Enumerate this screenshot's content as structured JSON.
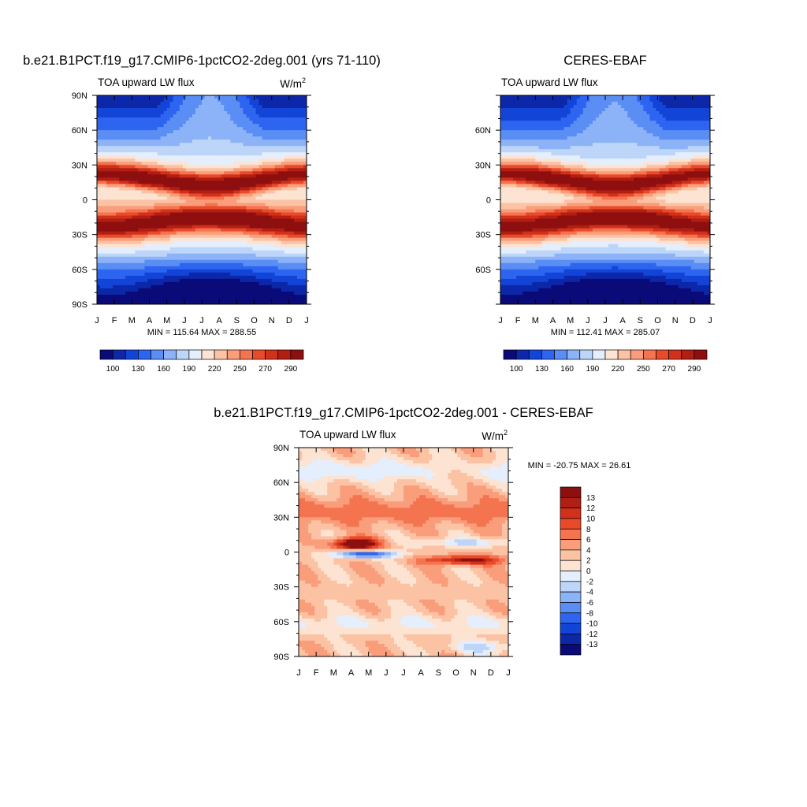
{
  "figure": {
    "units": "W/m",
    "units_exp": "2",
    "month_ticks": [
      "J",
      "F",
      "M",
      "A",
      "M",
      "J",
      "J",
      "A",
      "S",
      "O",
      "N",
      "D",
      "J"
    ]
  },
  "chart_data": [
    {
      "type": "heatmap",
      "title": "b.e21.B1PCT.f19_g17.CMIP6-1pctCO2-2deg.001 (yrs 71-110)",
      "subtitle": "TOA upward LW flux",
      "show_units": true,
      "xlabel": "",
      "ylabel": "",
      "x_tick_labels": [
        "J",
        "F",
        "M",
        "A",
        "M",
        "J",
        "J",
        "A",
        "S",
        "O",
        "N",
        "D",
        "J"
      ],
      "y_tick_labels": [
        "90N",
        "60N",
        "30N",
        "0",
        "30S",
        "60S",
        "90S"
      ],
      "ylim": [
        -90,
        90
      ],
      "stats": "MIN = 115.64 MAX = 288.55",
      "min": 115.64,
      "max": 288.55,
      "colorbar": {
        "orientation": "horizontal",
        "labels": [
          "100",
          "130",
          "160",
          "190",
          "220",
          "250",
          "270",
          "290"
        ],
        "colors": [
          "#0a0a78",
          "#0c27a8",
          "#1344d8",
          "#2d65f0",
          "#5a8ef5",
          "#8cb2f7",
          "#bed5fa",
          "#e4eefc",
          "#fde3d2",
          "#fcc2a4",
          "#f99d7b",
          "#f57450",
          "#e94a2a",
          "#d1301b",
          "#b01e14",
          "#8e0f0f"
        ]
      }
    },
    {
      "type": "heatmap",
      "title": "CERES-EBAF",
      "subtitle": "TOA upward LW flux",
      "show_units": false,
      "xlabel": "",
      "ylabel": "",
      "x_tick_labels": [
        "J",
        "F",
        "M",
        "A",
        "M",
        "J",
        "J",
        "A",
        "S",
        "O",
        "N",
        "D",
        "J"
      ],
      "y_tick_labels": [
        "60N",
        "30N",
        "0",
        "30S",
        "60S"
      ],
      "ylim": [
        -90,
        90
      ],
      "stats": "MIN = 112.41 MAX = 285.07",
      "min": 112.41,
      "max": 285.07,
      "colorbar": {
        "orientation": "horizontal",
        "labels": [
          "100",
          "130",
          "160",
          "190",
          "220",
          "250",
          "270",
          "290"
        ],
        "colors": [
          "#0a0a78",
          "#0c27a8",
          "#1344d8",
          "#2d65f0",
          "#5a8ef5",
          "#8cb2f7",
          "#bed5fa",
          "#e4eefc",
          "#fde3d2",
          "#fcc2a4",
          "#f99d7b",
          "#f57450",
          "#e94a2a",
          "#d1301b",
          "#b01e14",
          "#8e0f0f"
        ]
      }
    },
    {
      "type": "heatmap",
      "title": "b.e21.B1PCT.f19_g17.CMIP6-1pctCO2-2deg.001 - CERES-EBAF",
      "subtitle": "TOA upward LW flux",
      "show_units": true,
      "xlabel": "",
      "ylabel": "",
      "x_tick_labels": [
        "J",
        "F",
        "M",
        "A",
        "M",
        "J",
        "J",
        "A",
        "S",
        "O",
        "N",
        "D",
        "J"
      ],
      "y_tick_labels": [
        "90N",
        "60N",
        "30N",
        "0",
        "30S",
        "60S",
        "90S"
      ],
      "ylim": [
        -90,
        90
      ],
      "stats": "MIN = -20.75 MAX =  26.61",
      "min": -20.75,
      "max": 26.61,
      "colorbar": {
        "orientation": "vertical",
        "labels": [
          "13",
          "12",
          "10",
          "8",
          "6",
          "4",
          "2",
          "0",
          "-2",
          "-4",
          "-6",
          "-8",
          "-10",
          "-12",
          "-13"
        ],
        "colors": [
          "#8e0f0f",
          "#b01e14",
          "#d1301b",
          "#e94a2a",
          "#f57450",
          "#f99d7b",
          "#fcc2a4",
          "#fde3d2",
          "#e4eefc",
          "#bed5fa",
          "#8cb2f7",
          "#5a8ef5",
          "#2d65f0",
          "#1344d8",
          "#0c27a8",
          "#0a0a78"
        ]
      }
    }
  ]
}
